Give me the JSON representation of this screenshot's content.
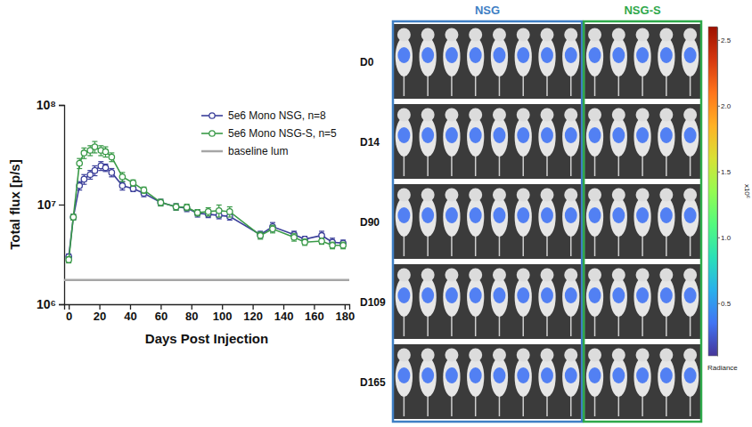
{
  "chart_data": [
    {
      "type": "line",
      "xlabel": "Days Post Injection",
      "ylabel": "Total flux [p/s]",
      "log": "y",
      "xlim": [
        -3,
        183
      ],
      "xticks": [
        0,
        20,
        40,
        60,
        80,
        100,
        120,
        140,
        160,
        180
      ],
      "ylim": [
        1000000,
        100000000
      ],
      "yticks": [
        {
          "value": 1000000,
          "label": "10⁶"
        },
        {
          "value": 10000000,
          "label": "10⁷"
        },
        {
          "value": 100000000,
          "label": "10⁸"
        }
      ],
      "legend": "top-right",
      "series": [
        {
          "name": "5e6 Mono NSG, n=8",
          "color": "#3b3f9a",
          "marker": "circle_open",
          "x": [
            0,
            3,
            7,
            10,
            14,
            17,
            21,
            24,
            28,
            35,
            42,
            49,
            60,
            70,
            77,
            84,
            91,
            98,
            105,
            125,
            133,
            147,
            154,
            165,
            172,
            179
          ],
          "values": [
            3000000,
            7500000,
            15500000,
            18000000,
            20000000,
            22000000,
            24500000,
            23500000,
            21000000,
            15500000,
            14500000,
            13000000,
            10500000,
            9500000,
            9200000,
            8200000,
            8000000,
            7800000,
            7600000,
            5000000,
            6000000,
            5000000,
            4500000,
            4900000,
            4200000,
            4100000
          ],
          "errors": [
            200000,
            500000,
            1500000,
            2000000,
            2000000,
            2500000,
            2500000,
            2000000,
            2000000,
            1500000,
            1000000,
            1000000,
            800000,
            700000,
            700000,
            700000,
            600000,
            600000,
            600000,
            400000,
            600000,
            400000,
            300000,
            500000,
            400000,
            300000
          ]
        },
        {
          "name": "5e6 Mono NSG-S, n=5",
          "color": "#3a9a48",
          "marker": "circle_open",
          "x": [
            0,
            3,
            7,
            10,
            14,
            17,
            21,
            24,
            28,
            35,
            42,
            49,
            60,
            70,
            77,
            84,
            91,
            98,
            105,
            125,
            133,
            147,
            154,
            165,
            172,
            179
          ],
          "values": [
            2800000,
            7500000,
            26000000,
            33000000,
            35000000,
            38000000,
            35000000,
            34000000,
            30000000,
            19000000,
            16500000,
            14000000,
            10500000,
            9500000,
            9400000,
            8300000,
            8500000,
            8700000,
            8500000,
            4900000,
            5700000,
            4700000,
            4200000,
            4300000,
            3900000,
            3900000
          ],
          "errors": [
            200000,
            500000,
            3000000,
            4000000,
            4000000,
            5000000,
            4000000,
            4000000,
            3000000,
            2000000,
            1200000,
            1000000,
            800000,
            700000,
            700000,
            600000,
            800000,
            1200000,
            1000000,
            400000,
            500000,
            400000,
            300000,
            300000,
            300000,
            300000
          ]
        },
        {
          "name": "baseline lum",
          "color": "#a6a6a6",
          "marker": "none",
          "x": [
            -3,
            183
          ],
          "values": [
            1750000,
            1750000
          ]
        }
      ]
    },
    {
      "type": "image_grid",
      "rows": [
        "D0",
        "D14",
        "D90",
        "D109",
        "D165"
      ],
      "groups": [
        {
          "name": "NSG",
          "color": "#3f7fc4",
          "mice": 8
        },
        {
          "name": "NSG-S",
          "color": "#2ea84a",
          "mice": 5
        }
      ],
      "colorbar": {
        "range": [
          0.1,
          2.6
        ],
        "ticks": [
          {
            "value": 0.5,
            "label": "0.5"
          },
          {
            "value": 1,
            "label": "1.0"
          },
          {
            "value": 1.5,
            "label": "1.5"
          },
          {
            "value": 2,
            "label": "2.0"
          },
          {
            "value": 2.5,
            "label": "2.5"
          }
        ],
        "unit_label": "x10⁶",
        "title": "Radiance"
      }
    }
  ]
}
